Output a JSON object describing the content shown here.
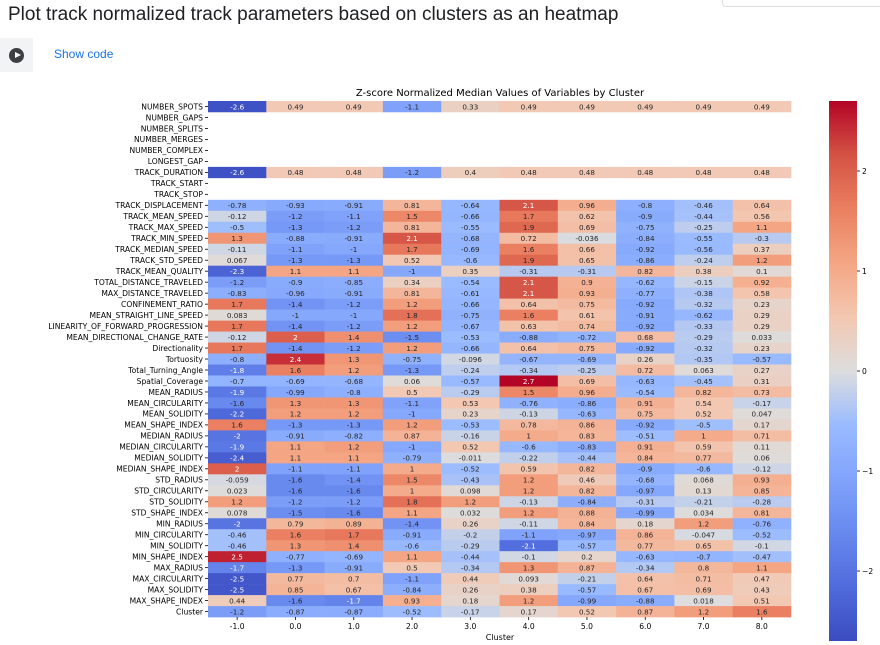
{
  "page": {
    "title": "Plot track normalized track parameters based on clusters as an heatmap",
    "show_code": "Show code"
  },
  "chart_data": {
    "type": "heatmap",
    "title": "Z-score Normalized Median Values of Variables by Cluster",
    "xlabel": "Cluster",
    "ylabel": "",
    "x_categories": [
      "-1.0",
      "0.0",
      "1.0",
      "2.0",
      "3.0",
      "4.0",
      "5.0",
      "6.0",
      "7.0",
      "8.0"
    ],
    "y_categories": [
      "NUMBER_SPOTS",
      "NUMBER_GAPS",
      "NUMBER_SPLITS",
      "NUMBER_MERGES",
      "NUMBER_COMPLEX",
      "LONGEST_GAP",
      "TRACK_DURATION",
      "TRACK_START",
      "TRACK_STOP",
      "TRACK_DISPLACEMENT",
      "TRACK_MEAN_SPEED",
      "TRACK_MAX_SPEED",
      "TRACK_MIN_SPEED",
      "TRACK_MEDIAN_SPEED",
      "TRACK_STD_SPEED",
      "TRACK_MEAN_QUALITY",
      "TOTAL_DISTANCE_TRAVELED",
      "MAX_DISTANCE_TRAVELED",
      "CONFINEMENT_RATIO",
      "MEAN_STRAIGHT_LINE_SPEED",
      "LINEARITY_OF_FORWARD_PROGRESSION",
      "MEAN_DIRECTIONAL_CHANGE_RATE",
      "Directionality",
      "Tortuosity",
      "Total_Turning_Angle",
      "Spatial_Coverage",
      "MEAN_RADIUS",
      "MEAN_CIRCULARITY",
      "MEAN_SOLIDITY",
      "MEAN_SHAPE_INDEX",
      "MEDIAN_RADIUS",
      "MEDIAN_CIRCULARITY",
      "MEDIAN_SOLIDITY",
      "MEDIAN_SHAPE_INDEX",
      "STD_RADIUS",
      "STD_CIRCULARITY",
      "STD_SOLIDITY",
      "STD_SHAPE_INDEX",
      "MIN_RADIUS",
      "MIN_CIRCULARITY",
      "MIN_SOLIDITY",
      "MIN_SHAPE_INDEX",
      "MAX_RADIUS",
      "MAX_CIRCULARITY",
      "MAX_SOLIDITY",
      "MAX_SHAPE_INDEX",
      "Cluster"
    ],
    "values": [
      [
        -2.6,
        0.49,
        0.49,
        -1.1,
        0.33,
        0.49,
        0.49,
        0.49,
        0.49,
        0.49
      ],
      [
        null,
        null,
        null,
        null,
        null,
        null,
        null,
        null,
        null,
        null
      ],
      [
        null,
        null,
        null,
        null,
        null,
        null,
        null,
        null,
        null,
        null
      ],
      [
        null,
        null,
        null,
        null,
        null,
        null,
        null,
        null,
        null,
        null
      ],
      [
        null,
        null,
        null,
        null,
        null,
        null,
        null,
        null,
        null,
        null
      ],
      [
        null,
        null,
        null,
        null,
        null,
        null,
        null,
        null,
        null,
        null
      ],
      [
        -2.6,
        0.48,
        0.48,
        -1.2,
        0.4,
        0.48,
        0.48,
        0.48,
        0.48,
        0.48
      ],
      [
        null,
        null,
        null,
        null,
        null,
        null,
        null,
        null,
        null,
        null
      ],
      [
        null,
        null,
        null,
        null,
        null,
        null,
        null,
        null,
        null,
        null
      ],
      [
        -0.78,
        -0.93,
        -0.91,
        0.81,
        -0.64,
        2.1,
        0.96,
        -0.8,
        -0.46,
        0.64
      ],
      [
        -0.12,
        -1.2,
        -1.1,
        1.5,
        -0.66,
        1.7,
        0.62,
        -0.9,
        -0.44,
        0.56
      ],
      [
        -0.5,
        -1.3,
        -1.2,
        0.81,
        -0.55,
        1.9,
        0.69,
        -0.75,
        -0.25,
        1.1
      ],
      [
        1.3,
        -0.88,
        -0.91,
        2.1,
        -0.68,
        0.72,
        -0.036,
        -0.84,
        -0.55,
        -0.3
      ],
      [
        -0.11,
        -1.1,
        -1,
        1.7,
        -0.69,
        1.6,
        0.66,
        -0.92,
        -0.56,
        0.37
      ],
      [
        0.067,
        -1.3,
        -1.3,
        0.52,
        -0.6,
        1.9,
        0.65,
        -0.86,
        -0.24,
        1.2
      ],
      [
        -2.3,
        1.1,
        1.1,
        -1,
        0.35,
        -0.31,
        -0.31,
        0.82,
        0.38,
        0.1
      ],
      [
        -1.2,
        -0.9,
        -0.85,
        0.34,
        -0.54,
        2.1,
        0.9,
        -0.62,
        -0.15,
        0.92
      ],
      [
        -0.83,
        -0.96,
        -0.91,
        0.81,
        -0.61,
        2.1,
        0.93,
        -0.77,
        -0.38,
        0.58
      ],
      [
        1.7,
        -1.4,
        -1.2,
        1.2,
        -0.66,
        0.64,
        0.75,
        -0.92,
        -0.32,
        0.23
      ],
      [
        0.083,
        -1,
        -1,
        1.8,
        -0.75,
        1.6,
        0.61,
        -0.91,
        -0.62,
        0.29
      ],
      [
        1.7,
        -1.4,
        -1.2,
        1.2,
        -0.67,
        0.63,
        0.74,
        -0.92,
        -0.33,
        0.29
      ],
      [
        -0.12,
        2,
        1.4,
        -1.5,
        -0.53,
        -0.88,
        -0.72,
        0.68,
        -0.29,
        0.033
      ],
      [
        1.7,
        -1.4,
        -1.2,
        1.2,
        -0.66,
        0.64,
        0.75,
        -0.92,
        -0.32,
        0.23
      ],
      [
        -0.8,
        2.4,
        1.3,
        -0.75,
        -0.096,
        -0.67,
        -0.69,
        0.26,
        -0.35,
        -0.57
      ],
      [
        -1.8,
        1.6,
        1.2,
        -1.3,
        -0.24,
        -0.34,
        -0.25,
        0.72,
        0.063,
        0.27
      ],
      [
        -0.7,
        -0.69,
        -0.68,
        0.06,
        -0.57,
        2.7,
        0.69,
        -0.63,
        -0.45,
        0.31
      ],
      [
        -1.9,
        -0.99,
        -0.8,
        0.5,
        -0.29,
        1.5,
        0.96,
        -0.54,
        0.82,
        0.73
      ],
      [
        -1.6,
        1.3,
        1.3,
        -1.1,
        0.53,
        -0.76,
        -0.86,
        0.91,
        0.54,
        -0.17
      ],
      [
        -2.2,
        1.2,
        1.2,
        -1,
        0.23,
        -0.13,
        -0.63,
        0.75,
        0.52,
        0.047
      ],
      [
        1.6,
        -1.3,
        -1.3,
        1.2,
        -0.53,
        0.78,
        0.86,
        -0.92,
        -0.5,
        0.17
      ],
      [
        -2,
        -0.91,
        -0.82,
        0.87,
        -0.16,
        1,
        0.83,
        -0.51,
        1,
        0.71
      ],
      [
        -1.9,
        1.1,
        1.2,
        -1,
        0.52,
        -0.6,
        -0.83,
        0.91,
        0.59,
        0.11
      ],
      [
        -2.4,
        1.1,
        1.1,
        -0.79,
        -0.011,
        -0.22,
        -0.44,
        0.84,
        0.77,
        0.06
      ],
      [
        2,
        -1.1,
        -1.1,
        1,
        -0.52,
        0.59,
        0.82,
        -0.9,
        -0.6,
        -0.12
      ],
      [
        -0.059,
        -1.6,
        -1.4,
        1.5,
        -0.43,
        1.2,
        0.46,
        -0.68,
        0.068,
        0.93
      ],
      [
        0.023,
        -1.6,
        -1.6,
        1,
        0.098,
        1.2,
        0.82,
        -0.97,
        0.13,
        0.85
      ],
      [
        1.2,
        -1.2,
        -1.2,
        1.8,
        1.2,
        -0.13,
        -0.84,
        -0.31,
        -0.21,
        -0.28
      ],
      [
        0.078,
        -1.5,
        -1.6,
        1.1,
        0.032,
        1.2,
        0.88,
        -0.99,
        0.034,
        0.81
      ],
      [
        -2,
        0.79,
        0.89,
        -1.4,
        0.26,
        -0.11,
        0.84,
        0.18,
        1.2,
        -0.76
      ],
      [
        -0.46,
        1.6,
        1.7,
        -0.91,
        -0.2,
        -1.1,
        -0.97,
        0.86,
        -0.047,
        -0.52
      ],
      [
        -0.46,
        1.3,
        1.4,
        -0.6,
        -0.29,
        -2.1,
        -0.57,
        0.77,
        0.65,
        -0.1
      ],
      [
        2.5,
        -0.77,
        -0.69,
        1.1,
        -0.44,
        -0.1,
        0.2,
        -0.63,
        -0.7,
        -0.47
      ],
      [
        -1.7,
        -1.3,
        -0.91,
        0.5,
        -0.34,
        1.3,
        0.87,
        -0.34,
        0.8,
        1.1
      ],
      [
        -2.5,
        0.77,
        0.7,
        -1.1,
        0.44,
        0.093,
        -0.21,
        0.64,
        0.71,
        0.47
      ],
      [
        -2.5,
        0.85,
        0.67,
        -0.84,
        0.26,
        0.38,
        -0.57,
        0.67,
        0.69,
        0.43
      ],
      [
        0.44,
        -1.6,
        -1.7,
        0.93,
        0.18,
        1.2,
        -0.99,
        -0.88,
        0.018,
        0.51
      ],
      [
        -1.2,
        -0.87,
        -0.87,
        -0.52,
        -0.17,
        0.17,
        0.52,
        0.87,
        1.2,
        1.6
      ]
    ],
    "colorbar": {
      "colormap": "coolwarm",
      "vmin": -2.7,
      "vmax": 2.7,
      "ticks": [
        2,
        1,
        0,
        -1,
        -2
      ],
      "tick_labels": [
        "2",
        "1",
        "0",
        "−1",
        "−2"
      ]
    },
    "legend": "colorbar right"
  }
}
